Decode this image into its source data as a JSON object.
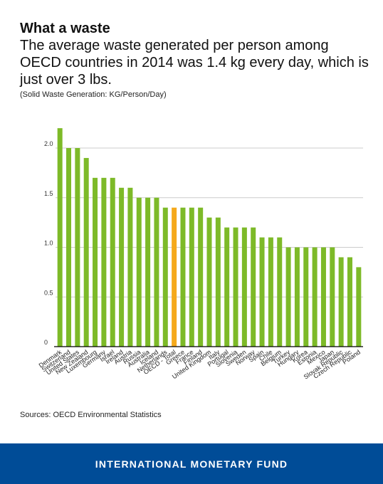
{
  "header": {
    "title": "What a waste",
    "subtitle": "The average waste generated per person among OECD countries in 2014 was 1.4 kg every day, which is just over 3 lbs.",
    "unit_note": "(Solid Waste Generation: KG/Person/Day)"
  },
  "chart_data": {
    "type": "bar",
    "categories": [
      "Denmark",
      "Switzerland",
      "United States",
      "New Zealand",
      "Luxembourg",
      "Germany",
      "Israel",
      "Ireland",
      "Austria",
      "Russia",
      "Australia",
      "Iceland",
      "Netherlands",
      "OECD - Total",
      "Greece",
      "France",
      "Finland",
      "United Kingdom",
      "Italy",
      "Portugal",
      "Slovenia",
      "Sweden",
      "Norway",
      "Spain",
      "Chile",
      "Belgium",
      "Turkey",
      "Hungary",
      "Korea",
      "Estonia",
      "Mexico",
      "Japan",
      "Slovak Republic",
      "Czech Republic",
      "Poland"
    ],
    "values": [
      2.2,
      2.0,
      2.0,
      1.9,
      1.7,
      1.7,
      1.7,
      1.6,
      1.6,
      1.5,
      1.5,
      1.5,
      1.4,
      1.4,
      1.4,
      1.4,
      1.4,
      1.3,
      1.3,
      1.2,
      1.2,
      1.2,
      1.2,
      1.1,
      1.1,
      1.1,
      1.0,
      1.0,
      1.0,
      1.0,
      1.0,
      1.0,
      0.9,
      0.9,
      0.8
    ],
    "highlight": "OECD - Total",
    "colors": {
      "bar": "#7dba28",
      "highlight": "#f5a91c",
      "grid": "#cccccc",
      "axis": "#000000"
    },
    "yticks": [
      0,
      0.5,
      1.0,
      1.5,
      2.0
    ],
    "ytick_labels": [
      "0",
      "0.5",
      "1.0",
      "1.5",
      "2.0"
    ],
    "ylim": [
      0,
      2.2
    ],
    "grid": true,
    "xlabel": "",
    "ylabel": ""
  },
  "sources": "Sources: OECD Environmental Statistics",
  "footer": {
    "org": "INTERNATIONAL MONETARY FUND",
    "background": "#004c97"
  }
}
